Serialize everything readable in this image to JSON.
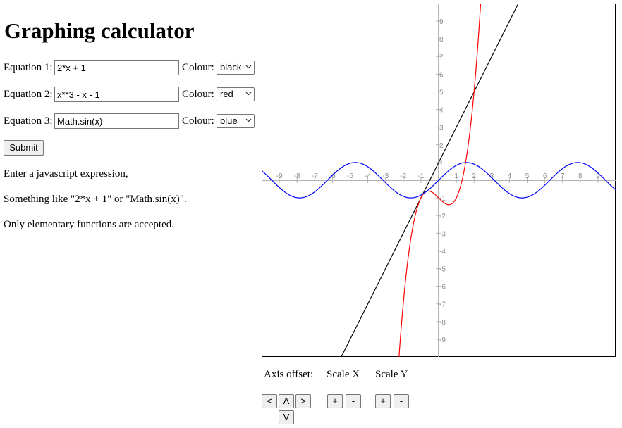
{
  "page": {
    "title": "Graphing calculator"
  },
  "equations": [
    {
      "label": "Equation 1:",
      "value": "2*x + 1",
      "colour_label": "Colour:",
      "colour": "black"
    },
    {
      "label": "Equation 2:",
      "value": "x**3 - x - 1",
      "colour_label": "Colour:",
      "colour": "red"
    },
    {
      "label": "Equation 3:",
      "value": "Math.sin(x)",
      "colour_label": "Colour:",
      "colour": "blue"
    }
  ],
  "submit_label": "Submit",
  "info": [
    "Enter a javascript expression,",
    "Something like \"2*x + 1\" or \"Math.sin(x)\".",
    "Only elementary functions are accepted."
  ],
  "graph": {
    "xlim": [
      -10,
      10
    ],
    "ylim": [
      -10,
      10
    ],
    "x_ticks": [
      -9,
      -8,
      -7,
      -6,
      -5,
      -4,
      -3,
      -2,
      -1,
      1,
      2,
      3,
      4,
      5,
      6,
      7,
      8,
      9
    ],
    "y_ticks": [
      9,
      8,
      7,
      6,
      5,
      4,
      3,
      2,
      1,
      -1,
      -2,
      -3,
      -4,
      -5,
      -6,
      -7,
      -8,
      -9
    ],
    "axis_color": "#b4b4b4",
    "tick_color": "#8c8c8c",
    "line_colors": {
      "black": "#000000",
      "red": "#ff0000",
      "blue": "#0000ff"
    }
  },
  "controls": {
    "axis_offset_label": "Axis offset:",
    "scale_x_label": "Scale X",
    "scale_y_label": "Scale Y",
    "left": "<",
    "up": "Λ",
    "right": ">",
    "down": "V",
    "plus": "+",
    "minus": "-"
  }
}
